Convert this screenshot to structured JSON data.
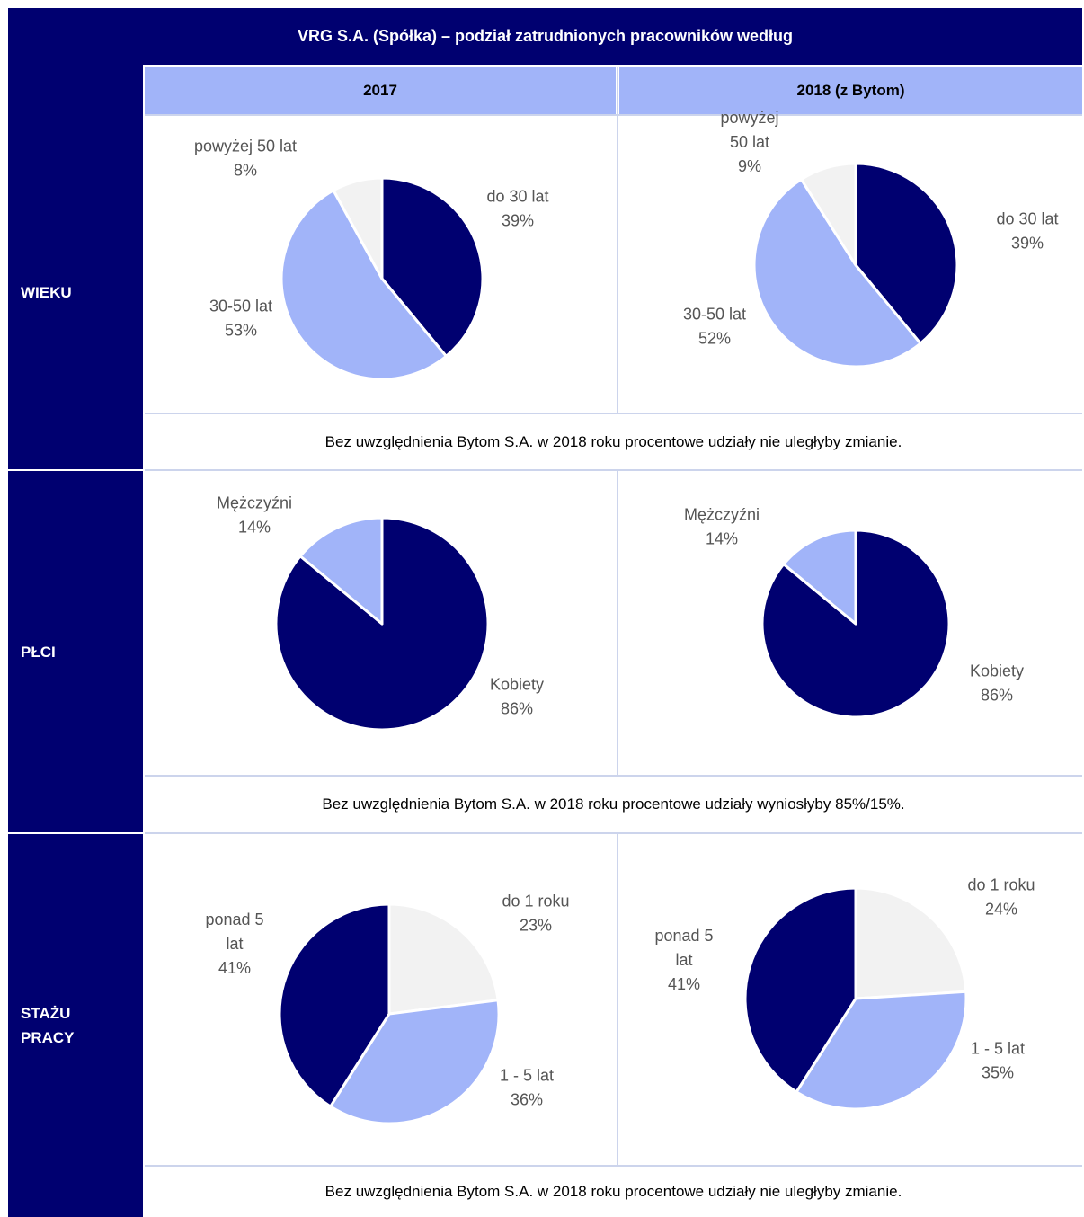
{
  "title": "VRG S.A. (Spółka) – podział zatrudnionych pracowników według",
  "columns": [
    "2017",
    "2018 (z Bytom)"
  ],
  "rows": [
    {
      "label_lines": [
        "WIEKU"
      ],
      "note": "Bez uwzględnienia Bytom S.A. w 2018 roku procentowe udziały nie uległyby zmianie."
    },
    {
      "label_lines": [
        "PŁCI"
      ],
      "note": "Bez uwzględnienia Bytom S.A. w 2018 roku procentowe udziały wyniosłyby 85%/15%."
    },
    {
      "label_lines": [
        "STAŻU",
        "PRACY"
      ],
      "note": "Bez uwzględnienia Bytom S.A. w 2018 roku procentowe udziały nie uległyby zmianie."
    }
  ],
  "colors": {
    "navy": "#000070",
    "light_blue": "#a1b4f9",
    "light_gray": "#f2f2f2"
  },
  "chart_data": [
    {
      "type": "pie",
      "group": "WIEKU",
      "year": "2017",
      "slices": [
        {
          "label_lines": [
            "do 30 lat"
          ],
          "pct": "39%",
          "value": 39,
          "color": "#000070"
        },
        {
          "label_lines": [
            "30-50 lat"
          ],
          "pct": "53%",
          "value": 53,
          "color": "#a1b4f9"
        },
        {
          "label_lines": [
            "powyżej 50 lat"
          ],
          "pct": "8%",
          "value": 8,
          "color": "#f2f2f2"
        }
      ]
    },
    {
      "type": "pie",
      "group": "WIEKU",
      "year": "2018 (z Bytom)",
      "slices": [
        {
          "label_lines": [
            "do 30 lat"
          ],
          "pct": "39%",
          "value": 39,
          "color": "#000070"
        },
        {
          "label_lines": [
            "30-50 lat"
          ],
          "pct": "52%",
          "value": 52,
          "color": "#a1b4f9"
        },
        {
          "label_lines": [
            "powyżej",
            "50 lat"
          ],
          "pct": "9%",
          "value": 9,
          "color": "#f2f2f2"
        }
      ]
    },
    {
      "type": "pie",
      "group": "PŁCI",
      "year": "2017",
      "slices": [
        {
          "label_lines": [
            "Kobiety"
          ],
          "pct": "86%",
          "value": 86,
          "color": "#000070"
        },
        {
          "label_lines": [
            "Mężczyźni"
          ],
          "pct": "14%",
          "value": 14,
          "color": "#a1b4f9"
        }
      ]
    },
    {
      "type": "pie",
      "group": "PŁCI",
      "year": "2018 (z Bytom)",
      "slices": [
        {
          "label_lines": [
            "Kobiety"
          ],
          "pct": "86%",
          "value": 86,
          "color": "#000070"
        },
        {
          "label_lines": [
            "Mężczyźni"
          ],
          "pct": "14%",
          "value": 14,
          "color": "#a1b4f9"
        }
      ]
    },
    {
      "type": "pie",
      "group": "STAŻU PRACY",
      "year": "2017",
      "slices": [
        {
          "label_lines": [
            "do 1 roku"
          ],
          "pct": "23%",
          "value": 23,
          "color": "#f2f2f2"
        },
        {
          "label_lines": [
            "1 - 5 lat"
          ],
          "pct": "36%",
          "value": 36,
          "color": "#a1b4f9"
        },
        {
          "label_lines": [
            "ponad 5",
            "lat"
          ],
          "pct": "41%",
          "value": 41,
          "color": "#000070"
        }
      ]
    },
    {
      "type": "pie",
      "group": "STAŻU PRACY",
      "year": "2018 (z Bytom)",
      "slices": [
        {
          "label_lines": [
            "do 1 roku"
          ],
          "pct": "24%",
          "value": 24,
          "color": "#f2f2f2"
        },
        {
          "label_lines": [
            "1 - 5 lat"
          ],
          "pct": "35%",
          "value": 35,
          "color": "#a1b4f9"
        },
        {
          "label_lines": [
            "ponad 5",
            "lat"
          ],
          "pct": "41%",
          "value": 41,
          "color": "#000070"
        }
      ]
    }
  ]
}
